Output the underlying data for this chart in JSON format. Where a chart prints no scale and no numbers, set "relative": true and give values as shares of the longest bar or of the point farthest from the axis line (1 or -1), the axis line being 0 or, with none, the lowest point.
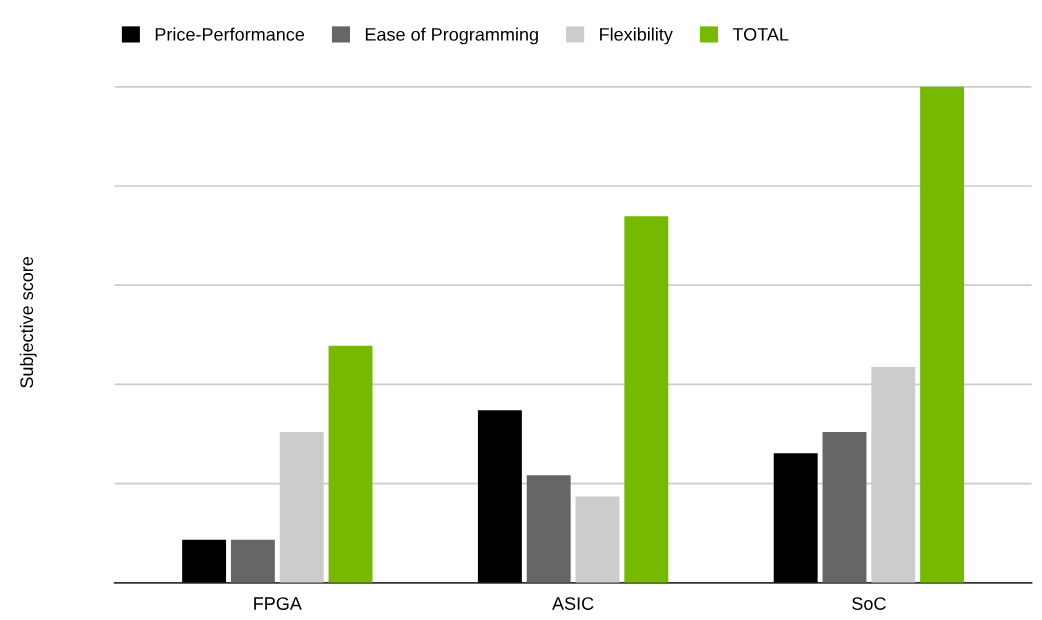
{
  "chart_data": {
    "type": "bar",
    "relative": true,
    "ylabel": "Subjective score",
    "categories": [
      "FPGA",
      "ASIC",
      "SoC"
    ],
    "series": [
      {
        "name": "Price-Performance",
        "color": "#000000",
        "values": [
          0.087,
          0.348,
          0.261
        ]
      },
      {
        "name": "Ease of Programming",
        "color": "#666666",
        "values": [
          0.087,
          0.217,
          0.304
        ]
      },
      {
        "name": "Flexibility",
        "color": "#cccccc",
        "values": [
          0.304,
          0.174,
          0.435
        ]
      },
      {
        "name": "TOTAL",
        "color": "#76b900",
        "values": [
          0.478,
          0.739,
          1.0
        ]
      }
    ],
    "grid": "y",
    "legend": "top left"
  }
}
